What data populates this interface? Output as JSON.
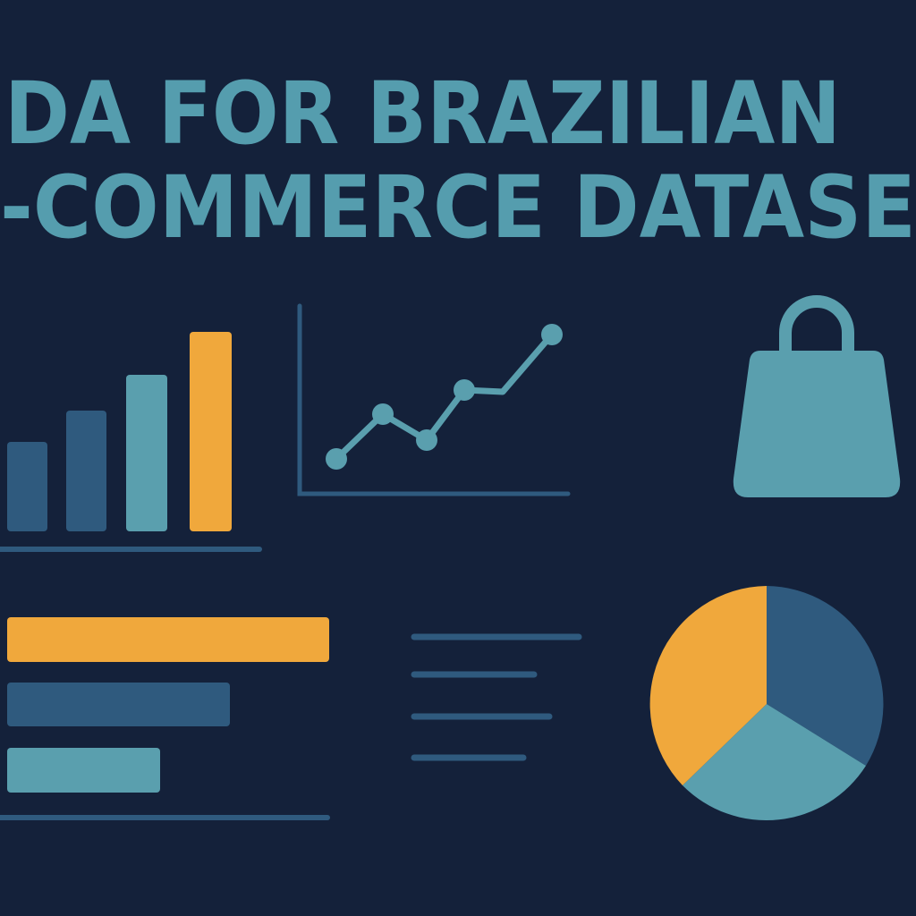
{
  "header": {
    "title_lines": [
      "DA FOR BRAZILIAN",
      "-COMMERCE DATASE"
    ]
  }
}
